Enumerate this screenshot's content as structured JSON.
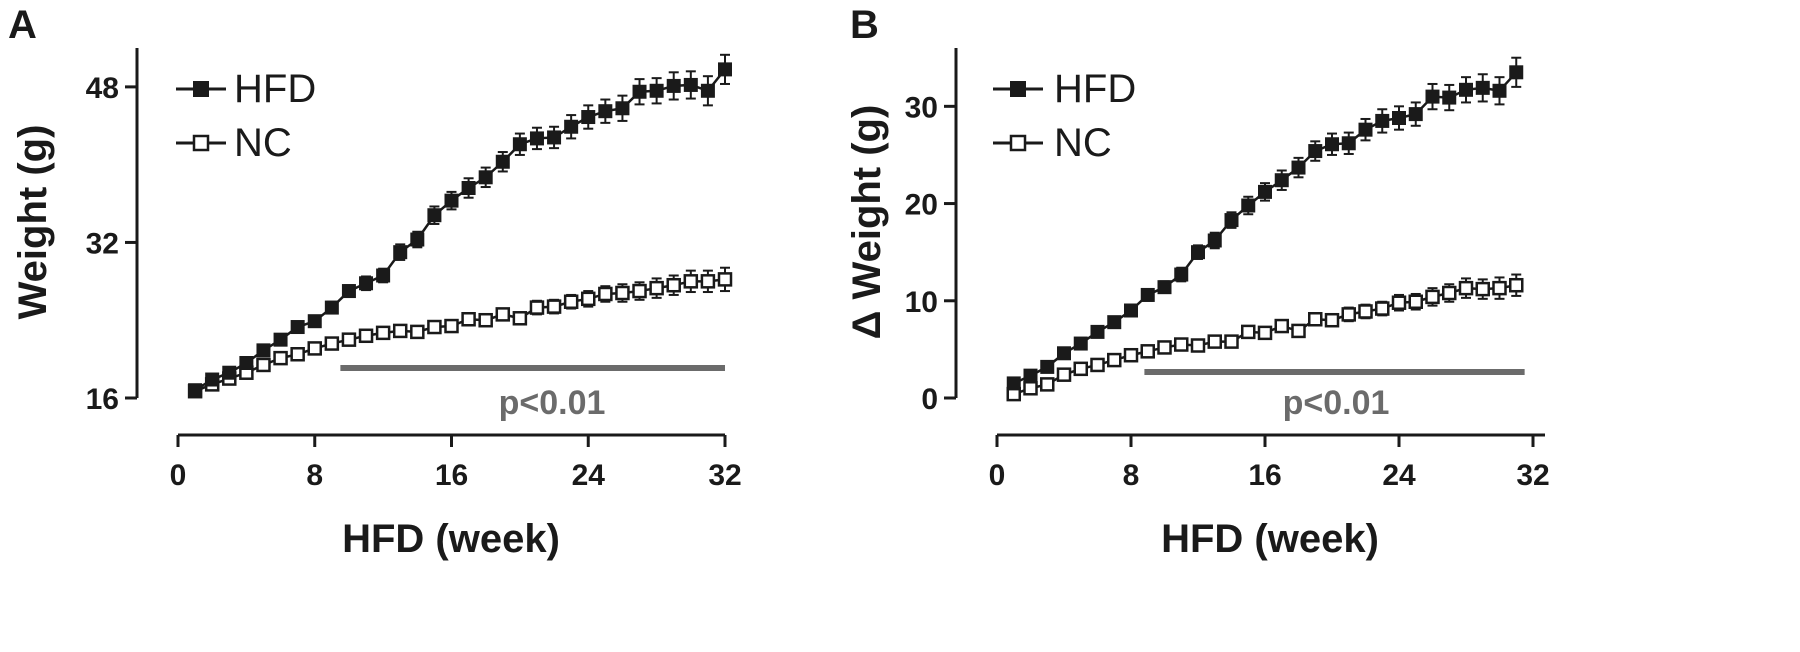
{
  "colors": {
    "ink": "#1a1a1a",
    "significance_bar": "#6b6b6b",
    "background": "#ffffff"
  },
  "chart_data": [
    {
      "type": "line",
      "panel_label": "A",
      "xlabel": "HFD (week)",
      "ylabel": "Weight (g)",
      "xlim": [
        0,
        32
      ],
      "ylim": [
        16,
        52
      ],
      "xticks": [
        0,
        8,
        16,
        24,
        32
      ],
      "yticks": [
        16,
        32,
        48
      ],
      "grid": false,
      "legend_position": "top-left",
      "x": [
        1,
        2,
        3,
        4,
        5,
        6,
        7,
        8,
        9,
        10,
        11,
        12,
        13,
        14,
        15,
        16,
        17,
        18,
        19,
        20,
        21,
        22,
        23,
        24,
        25,
        26,
        27,
        28,
        29,
        30,
        31,
        32
      ],
      "series": [
        {
          "name": "HFD",
          "marker": "filled-square",
          "values": [
            16.8,
            17.9,
            18.6,
            19.6,
            20.9,
            22.0,
            23.3,
            23.9,
            25.3,
            27.0,
            27.8,
            28.6,
            31.0,
            32.3,
            34.8,
            36.3,
            37.6,
            38.7,
            40.3,
            42.1,
            42.7,
            42.8,
            43.9,
            44.9,
            45.5,
            45.8,
            47.5,
            47.6,
            48.1,
            48.2,
            47.6,
            49.8
          ],
          "errors": [
            0.4,
            0.4,
            0.4,
            0.5,
            0.5,
            0.5,
            0.5,
            0.5,
            0.6,
            0.6,
            0.7,
            0.7,
            0.8,
            0.8,
            0.9,
            0.9,
            1.0,
            1.0,
            1.0,
            1.1,
            1.1,
            1.1,
            1.2,
            1.2,
            1.2,
            1.3,
            1.3,
            1.3,
            1.4,
            1.4,
            1.5,
            1.5
          ]
        },
        {
          "name": "NC",
          "marker": "open-square",
          "values": [
            16.7,
            17.4,
            18.0,
            18.6,
            19.4,
            20.1,
            20.5,
            21.1,
            21.6,
            22.0,
            22.4,
            22.7,
            22.9,
            22.8,
            23.3,
            23.4,
            24.1,
            24.0,
            24.6,
            24.2,
            25.3,
            25.4,
            25.9,
            26.2,
            26.7,
            26.8,
            27.0,
            27.3,
            27.6,
            28.0,
            28.0,
            28.2
          ],
          "errors": [
            0.4,
            0.4,
            0.4,
            0.4,
            0.4,
            0.4,
            0.4,
            0.4,
            0.4,
            0.5,
            0.5,
            0.5,
            0.5,
            0.5,
            0.5,
            0.5,
            0.6,
            0.6,
            0.6,
            0.6,
            0.7,
            0.7,
            0.7,
            0.8,
            0.8,
            0.9,
            0.9,
            1.0,
            1.0,
            1.1,
            1.1,
            1.2
          ]
        }
      ],
      "annotation": {
        "text": "p<0.01",
        "from_x": 9.5,
        "to_x": 32
      }
    },
    {
      "type": "line",
      "panel_label": "B",
      "xlabel": "HFD (week)",
      "ylabel": "Δ Weight (g)",
      "xlim": [
        0,
        32
      ],
      "ylim": [
        0,
        36
      ],
      "xticks": [
        0,
        8,
        16,
        24,
        32
      ],
      "yticks": [
        0,
        10,
        20,
        30
      ],
      "grid": false,
      "legend_position": "top-left",
      "x": [
        1,
        2,
        3,
        4,
        5,
        6,
        7,
        8,
        9,
        10,
        11,
        12,
        13,
        14,
        15,
        16,
        17,
        18,
        19,
        20,
        21,
        22,
        23,
        24,
        25,
        26,
        27,
        28,
        29,
        30,
        31
      ],
      "series": [
        {
          "name": "HFD",
          "marker": "filled-square",
          "values": [
            1.5,
            2.3,
            3.2,
            4.6,
            5.6,
            6.8,
            7.8,
            9.0,
            10.6,
            11.4,
            12.7,
            15.0,
            16.2,
            18.3,
            19.8,
            21.2,
            22.4,
            23.7,
            25.4,
            26.1,
            26.2,
            27.6,
            28.5,
            28.8,
            29.2,
            31.0,
            30.9,
            31.7,
            31.9,
            31.6,
            33.5
          ],
          "errors": [
            0.4,
            0.4,
            0.4,
            0.5,
            0.5,
            0.5,
            0.5,
            0.5,
            0.6,
            0.6,
            0.7,
            0.7,
            0.8,
            0.8,
            0.9,
            0.9,
            1.0,
            1.0,
            1.0,
            1.1,
            1.1,
            1.1,
            1.2,
            1.2,
            1.2,
            1.3,
            1.3,
            1.3,
            1.4,
            1.4,
            1.5
          ]
        },
        {
          "name": "NC",
          "marker": "open-square",
          "values": [
            0.4,
            1.0,
            1.4,
            2.4,
            3.0,
            3.4,
            3.9,
            4.4,
            4.8,
            5.2,
            5.5,
            5.4,
            5.8,
            5.8,
            6.8,
            6.7,
            7.4,
            6.9,
            8.1,
            8.0,
            8.6,
            8.9,
            9.2,
            9.8,
            9.9,
            10.4,
            10.8,
            11.3,
            11.2,
            11.3,
            11.6
          ],
          "errors": [
            0.4,
            0.4,
            0.4,
            0.4,
            0.4,
            0.4,
            0.4,
            0.4,
            0.4,
            0.5,
            0.5,
            0.5,
            0.5,
            0.5,
            0.5,
            0.5,
            0.6,
            0.6,
            0.6,
            0.6,
            0.7,
            0.7,
            0.7,
            0.8,
            0.8,
            0.9,
            0.9,
            1.0,
            1.0,
            1.1,
            1.1
          ]
        }
      ],
      "annotation": {
        "text": "p<0.01",
        "from_x": 8.8,
        "to_x": 31.5
      }
    }
  ]
}
